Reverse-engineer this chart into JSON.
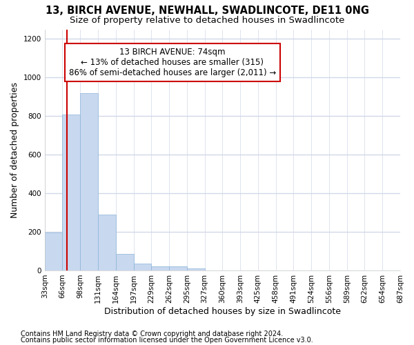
{
  "title": "13, BIRCH AVENUE, NEWHALL, SWADLINCOTE, DE11 0NG",
  "subtitle": "Size of property relative to detached houses in Swadlincote",
  "xlabel": "Distribution of detached houses by size in Swadlincote",
  "ylabel": "Number of detached properties",
  "footnote1": "Contains HM Land Registry data © Crown copyright and database right 2024.",
  "footnote2": "Contains public sector information licensed under the Open Government Licence v3.0.",
  "annotation_line1": "13 BIRCH AVENUE: 74sqm",
  "annotation_line2": "← 13% of detached houses are smaller (315)",
  "annotation_line3": "86% of semi-detached houses are larger (2,011) →",
  "bar_color": "#c8d8ef",
  "bar_edge_color": "#8ab4d8",
  "vline_color": "#cc0000",
  "vline_x": 74,
  "bin_edges": [
    33,
    66,
    99,
    132,
    165,
    198,
    231,
    264,
    297,
    330,
    363,
    396,
    429,
    462,
    495,
    528,
    561,
    594,
    627,
    660,
    693
  ],
  "bar_heights": [
    195,
    810,
    920,
    290,
    85,
    35,
    20,
    20,
    10,
    0,
    0,
    0,
    0,
    0,
    0,
    0,
    0,
    0,
    0,
    0
  ],
  "ylim": [
    0,
    1250
  ],
  "yticks": [
    0,
    200,
    400,
    600,
    800,
    1000,
    1200
  ],
  "xtick_labels": [
    "33sqm",
    "66sqm",
    "98sqm",
    "131sqm",
    "164sqm",
    "197sqm",
    "229sqm",
    "262sqm",
    "295sqm",
    "327sqm",
    "360sqm",
    "393sqm",
    "425sqm",
    "458sqm",
    "491sqm",
    "524sqm",
    "556sqm",
    "589sqm",
    "622sqm",
    "654sqm",
    "687sqm"
  ],
  "background_color": "#ffffff",
  "plot_bg_color": "#ffffff",
  "grid_color": "#d0d8e8",
  "annotation_box_color": "#ffffff",
  "annotation_border_color": "#cc0000",
  "title_fontsize": 10.5,
  "subtitle_fontsize": 9.5,
  "axis_label_fontsize": 9,
  "tick_fontsize": 7.5,
  "annotation_fontsize": 8.5,
  "footnote_fontsize": 7
}
